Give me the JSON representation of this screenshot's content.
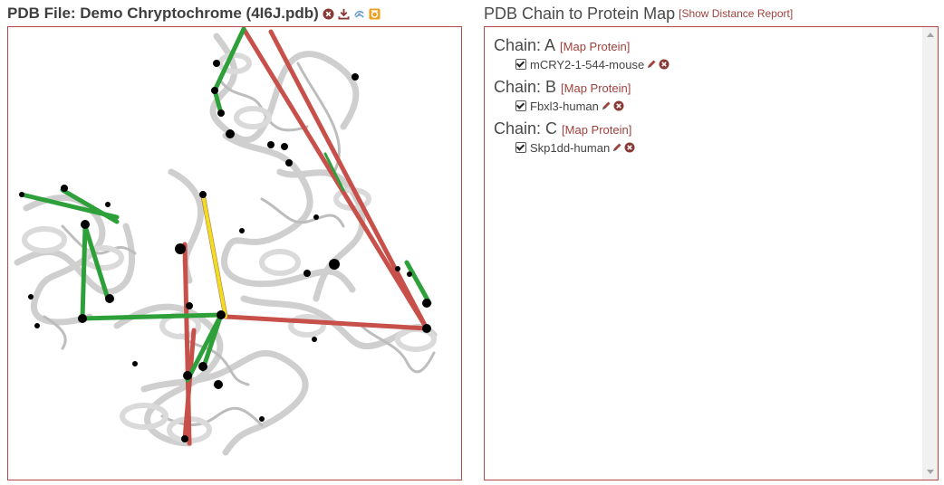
{
  "left_panel": {
    "title": "PDB File: Demo Chryptochrome (4I6J.pdb)",
    "icons": [
      "close-circle-icon",
      "download-icon",
      "molecule-icon",
      "snapshot-icon"
    ]
  },
  "right_panel": {
    "title": "PDB Chain to Protein Map",
    "distance_report_link": "[Show Distance Report]",
    "chains": [
      {
        "label": "Chain: A",
        "map_link": "[Map Protein]",
        "proteins": [
          {
            "name": "mCRY2-1-544-mouse",
            "checked": true
          }
        ]
      },
      {
        "label": "Chain: B",
        "map_link": "[Map Protein]",
        "proteins": [
          {
            "name": "Fbxl3-human",
            "checked": true
          }
        ]
      },
      {
        "label": "Chain: C",
        "map_link": "[Map Protein]",
        "proteins": [
          {
            "name": "Skp1dd-human",
            "checked": true
          }
        ]
      }
    ]
  },
  "colors": {
    "border": "#b24a4a",
    "link": "#a0413c",
    "crosslink_red": "#c8504a",
    "crosslink_green": "#2ea03a",
    "crosslink_yellow": "#e8e020",
    "ribbon": "#d2d2d2"
  }
}
